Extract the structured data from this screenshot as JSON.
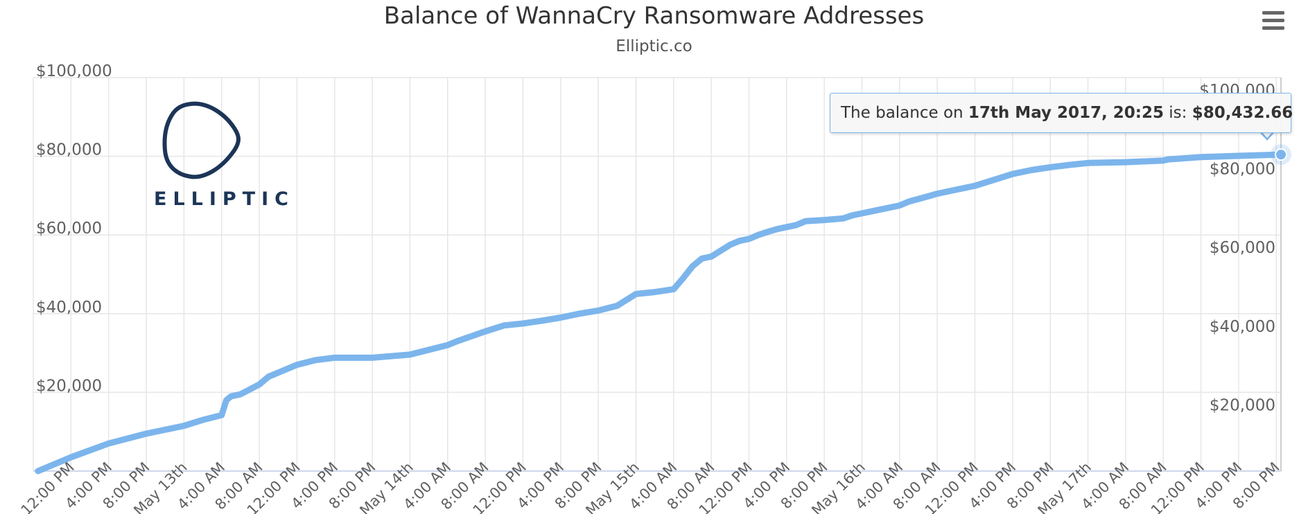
{
  "header": {
    "title": "Balance of WannaCry Ransomware Addresses",
    "subtitle": "Elliptic.co"
  },
  "logo": {
    "text": "ELLIPTIC",
    "icon": "elliptic-rounded-triangle-logo"
  },
  "menu": {
    "icon": "hamburger-menu-icon"
  },
  "tooltip": {
    "prefix": "The balance on ",
    "date": "17th May 2017, 20:25",
    "middle": " is: ",
    "value": "$80,432.66"
  },
  "colors": {
    "series": "#7cb5ec",
    "grid": "#e6e6e6",
    "logo": "#1c3557",
    "text": "#333333",
    "axis_text": "#606060"
  },
  "chart_data": {
    "type": "area",
    "title": "Balance of WannaCry Ransomware Addresses",
    "subtitle": "Elliptic.co",
    "xlabel": "",
    "ylabel": "",
    "x_unit": "hours since 12 May 2017, 08:00",
    "xlim": [
      0,
      132.5
    ],
    "ylim": [
      0,
      100000
    ],
    "grid": true,
    "y_ticks": [
      20000,
      40000,
      60000,
      80000,
      100000
    ],
    "y_tick_labels": [
      "$20,000",
      "$40,000",
      "$60,000",
      "$80,000",
      "$100,000"
    ],
    "x_ticks": [
      4,
      8,
      12,
      16,
      20,
      24,
      28,
      32,
      36,
      40,
      44,
      48,
      52,
      56,
      60,
      64,
      68,
      72,
      76,
      80,
      84,
      88,
      92,
      96,
      100,
      104,
      108,
      112,
      116,
      120,
      124,
      128,
      132
    ],
    "x_tick_labels": [
      "12:00 PM",
      "4:00 PM",
      "8:00 PM",
      "May 13th",
      "4:00 AM",
      "8:00 AM",
      "12:00 PM",
      "4:00 PM",
      "8:00 PM",
      "May 14th",
      "4:00 AM",
      "8:00 AM",
      "12:00 PM",
      "4:00 PM",
      "8:00 PM",
      "May 15th",
      "4:00 AM",
      "8:00 AM",
      "12:00 PM",
      "4:00 PM",
      "8:00 PM",
      "May 16th",
      "4:00 AM",
      "8:00 AM",
      "12:00 PM",
      "4:00 PM",
      "8:00 PM",
      "May 17th",
      "4:00 AM",
      "8:00 AM",
      "12:00 PM",
      "4:00 PM",
      "8:00 PM"
    ],
    "series": [
      {
        "name": "Balance",
        "x": [
          0.5,
          4,
          8,
          12,
          16,
          18,
          20,
          20.5,
          21,
          22,
          24,
          25,
          26,
          28,
          30,
          32,
          36,
          40,
          44,
          45,
          48,
          50,
          52,
          54,
          56,
          58,
          60,
          62,
          64,
          66,
          68,
          69,
          70,
          71,
          72,
          73,
          74,
          75,
          76,
          77,
          78,
          79,
          80,
          81,
          82,
          84,
          86,
          87,
          88,
          90,
          92,
          93,
          95,
          96,
          98,
          100,
          102,
          104,
          106,
          108,
          110,
          112,
          116,
          120,
          120.5,
          124,
          128,
          132.5
        ],
        "values": [
          0,
          3500,
          7000,
          9500,
          11500,
          13000,
          14200,
          18000,
          19000,
          19500,
          22000,
          24000,
          25000,
          27000,
          28200,
          28800,
          28800,
          29600,
          32000,
          33000,
          35500,
          37000,
          37500,
          38200,
          39000,
          40000,
          40800,
          42000,
          45000,
          45500,
          46200,
          49000,
          52000,
          54000,
          54500,
          56000,
          57500,
          58500,
          59000,
          60000,
          60800,
          61500,
          62000,
          62500,
          63500,
          63800,
          64200,
          65000,
          65500,
          66500,
          67500,
          68500,
          69800,
          70500,
          71500,
          72500,
          74000,
          75500,
          76500,
          77200,
          77800,
          78300,
          78500,
          78900,
          79200,
          79800,
          80100,
          80432.66
        ]
      }
    ],
    "highlighted_point": {
      "x": 132.5,
      "y": 80432.66
    }
  }
}
